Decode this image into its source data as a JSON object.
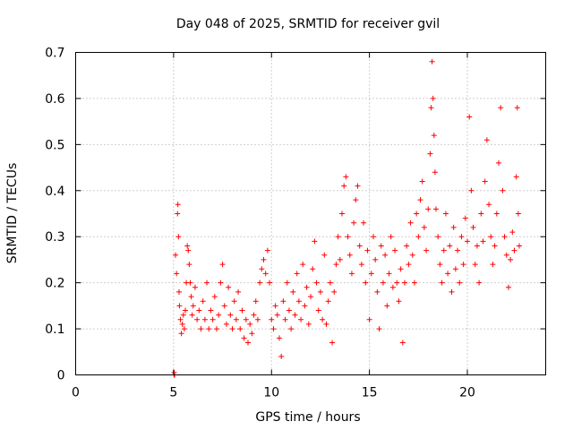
{
  "chart_data": {
    "type": "scatter",
    "title": "Day 048 of 2025, SRMTID for receiver gvil",
    "xlabel": "GPS time / hours",
    "ylabel": "SRMTID / TECUs",
    "xlim": [
      0,
      24
    ],
    "ylim": [
      0,
      0.7
    ],
    "xticks": [
      0,
      5,
      10,
      15,
      20
    ],
    "yticks": [
      0,
      0.1,
      0.2,
      0.3,
      0.4,
      0.5,
      0.6,
      0.7
    ],
    "xtick_labels": [
      "0",
      "5",
      "10",
      "15",
      "20"
    ],
    "ytick_labels": [
      "0",
      "0.1",
      "0.2",
      "0.3",
      "0.4",
      "0.5",
      "0.6",
      "0.7"
    ],
    "grid": true,
    "marker": "plus",
    "color": "#ff0000",
    "series": [
      {
        "name": "SRMTID",
        "points": [
          [
            5.02,
            0.0
          ],
          [
            5.03,
            0.005
          ],
          [
            5.05,
            0.0
          ],
          [
            5.1,
            0.26
          ],
          [
            5.15,
            0.22
          ],
          [
            5.2,
            0.35
          ],
          [
            5.22,
            0.37
          ],
          [
            5.25,
            0.3
          ],
          [
            5.28,
            0.18
          ],
          [
            5.3,
            0.15
          ],
          [
            5.35,
            0.12
          ],
          [
            5.4,
            0.09
          ],
          [
            5.45,
            0.11
          ],
          [
            5.5,
            0.13
          ],
          [
            5.55,
            0.1
          ],
          [
            5.6,
            0.14
          ],
          [
            5.65,
            0.2
          ],
          [
            5.7,
            0.28
          ],
          [
            5.75,
            0.27
          ],
          [
            5.8,
            0.24
          ],
          [
            5.85,
            0.2
          ],
          [
            5.9,
            0.17
          ],
          [
            5.95,
            0.13
          ],
          [
            6.0,
            0.15
          ],
          [
            6.1,
            0.19
          ],
          [
            6.2,
            0.12
          ],
          [
            6.3,
            0.14
          ],
          [
            6.4,
            0.1
          ],
          [
            6.5,
            0.16
          ],
          [
            6.6,
            0.12
          ],
          [
            6.7,
            0.2
          ],
          [
            6.8,
            0.1
          ],
          [
            6.9,
            0.14
          ],
          [
            7.0,
            0.12
          ],
          [
            7.1,
            0.17
          ],
          [
            7.2,
            0.1
          ],
          [
            7.3,
            0.13
          ],
          [
            7.4,
            0.2
          ],
          [
            7.5,
            0.24
          ],
          [
            7.6,
            0.15
          ],
          [
            7.7,
            0.11
          ],
          [
            7.8,
            0.19
          ],
          [
            7.9,
            0.13
          ],
          [
            8.0,
            0.1
          ],
          [
            8.1,
            0.16
          ],
          [
            8.2,
            0.12
          ],
          [
            8.3,
            0.18
          ],
          [
            8.4,
            0.1
          ],
          [
            8.5,
            0.14
          ],
          [
            8.6,
            0.08
          ],
          [
            8.7,
            0.12
          ],
          [
            8.8,
            0.07
          ],
          [
            8.9,
            0.11
          ],
          [
            9.0,
            0.09
          ],
          [
            9.1,
            0.13
          ],
          [
            9.2,
            0.16
          ],
          [
            9.3,
            0.12
          ],
          [
            9.4,
            0.2
          ],
          [
            9.5,
            0.23
          ],
          [
            9.6,
            0.25
          ],
          [
            9.7,
            0.22
          ],
          [
            9.8,
            0.27
          ],
          [
            9.9,
            0.2
          ],
          [
            10.0,
            0.12
          ],
          [
            10.1,
            0.1
          ],
          [
            10.2,
            0.15
          ],
          [
            10.3,
            0.13
          ],
          [
            10.4,
            0.08
          ],
          [
            10.5,
            0.04
          ],
          [
            10.6,
            0.16
          ],
          [
            10.7,
            0.12
          ],
          [
            10.8,
            0.2
          ],
          [
            10.9,
            0.14
          ],
          [
            11.0,
            0.1
          ],
          [
            11.1,
            0.18
          ],
          [
            11.2,
            0.13
          ],
          [
            11.3,
            0.22
          ],
          [
            11.4,
            0.16
          ],
          [
            11.5,
            0.12
          ],
          [
            11.6,
            0.24
          ],
          [
            11.7,
            0.15
          ],
          [
            11.8,
            0.19
          ],
          [
            11.9,
            0.11
          ],
          [
            12.0,
            0.17
          ],
          [
            12.1,
            0.23
          ],
          [
            12.2,
            0.29
          ],
          [
            12.3,
            0.2
          ],
          [
            12.4,
            0.14
          ],
          [
            12.5,
            0.18
          ],
          [
            12.6,
            0.12
          ],
          [
            12.7,
            0.26
          ],
          [
            12.8,
            0.11
          ],
          [
            12.9,
            0.16
          ],
          [
            13.0,
            0.2
          ],
          [
            13.1,
            0.07
          ],
          [
            13.2,
            0.18
          ],
          [
            13.3,
            0.24
          ],
          [
            13.4,
            0.3
          ],
          [
            13.5,
            0.25
          ],
          [
            13.6,
            0.35
          ],
          [
            13.7,
            0.41
          ],
          [
            13.8,
            0.43
          ],
          [
            13.9,
            0.3
          ],
          [
            14.0,
            0.26
          ],
          [
            14.1,
            0.22
          ],
          [
            14.2,
            0.33
          ],
          [
            14.3,
            0.38
          ],
          [
            14.4,
            0.41
          ],
          [
            14.5,
            0.28
          ],
          [
            14.6,
            0.24
          ],
          [
            14.7,
            0.33
          ],
          [
            14.8,
            0.2
          ],
          [
            14.9,
            0.27
          ],
          [
            15.0,
            0.12
          ],
          [
            15.1,
            0.22
          ],
          [
            15.2,
            0.3
          ],
          [
            15.3,
            0.25
          ],
          [
            15.4,
            0.18
          ],
          [
            15.5,
            0.1
          ],
          [
            15.6,
            0.28
          ],
          [
            15.7,
            0.2
          ],
          [
            15.8,
            0.26
          ],
          [
            15.9,
            0.15
          ],
          [
            16.0,
            0.22
          ],
          [
            16.1,
            0.3
          ],
          [
            16.2,
            0.19
          ],
          [
            16.3,
            0.27
          ],
          [
            16.4,
            0.2
          ],
          [
            16.5,
            0.16
          ],
          [
            16.6,
            0.23
          ],
          [
            16.7,
            0.07
          ],
          [
            16.8,
            0.2
          ],
          [
            16.9,
            0.28
          ],
          [
            17.0,
            0.24
          ],
          [
            17.1,
            0.33
          ],
          [
            17.2,
            0.26
          ],
          [
            17.3,
            0.2
          ],
          [
            17.4,
            0.35
          ],
          [
            17.5,
            0.3
          ],
          [
            17.6,
            0.38
          ],
          [
            17.7,
            0.42
          ],
          [
            17.8,
            0.32
          ],
          [
            17.9,
            0.27
          ],
          [
            18.0,
            0.36
          ],
          [
            18.1,
            0.48
          ],
          [
            18.15,
            0.58
          ],
          [
            18.2,
            0.68
          ],
          [
            18.25,
            0.6
          ],
          [
            18.3,
            0.52
          ],
          [
            18.35,
            0.44
          ],
          [
            18.4,
            0.36
          ],
          [
            18.5,
            0.3
          ],
          [
            18.6,
            0.24
          ],
          [
            18.7,
            0.2
          ],
          [
            18.8,
            0.27
          ],
          [
            18.9,
            0.35
          ],
          [
            19.0,
            0.22
          ],
          [
            19.1,
            0.28
          ],
          [
            19.2,
            0.18
          ],
          [
            19.3,
            0.32
          ],
          [
            19.4,
            0.23
          ],
          [
            19.5,
            0.27
          ],
          [
            19.6,
            0.2
          ],
          [
            19.7,
            0.3
          ],
          [
            19.8,
            0.24
          ],
          [
            19.9,
            0.34
          ],
          [
            20.0,
            0.29
          ],
          [
            20.1,
            0.56
          ],
          [
            20.2,
            0.4
          ],
          [
            20.3,
            0.32
          ],
          [
            20.4,
            0.24
          ],
          [
            20.5,
            0.28
          ],
          [
            20.6,
            0.2
          ],
          [
            20.7,
            0.35
          ],
          [
            20.8,
            0.29
          ],
          [
            20.9,
            0.42
          ],
          [
            21.0,
            0.51
          ],
          [
            21.1,
            0.37
          ],
          [
            21.2,
            0.3
          ],
          [
            21.3,
            0.24
          ],
          [
            21.4,
            0.28
          ],
          [
            21.5,
            0.35
          ],
          [
            21.6,
            0.46
          ],
          [
            21.7,
            0.58
          ],
          [
            21.8,
            0.4
          ],
          [
            21.9,
            0.3
          ],
          [
            22.0,
            0.26
          ],
          [
            22.1,
            0.19
          ],
          [
            22.2,
            0.25
          ],
          [
            22.3,
            0.31
          ],
          [
            22.4,
            0.27
          ],
          [
            22.5,
            0.43
          ],
          [
            22.55,
            0.58
          ],
          [
            22.6,
            0.35
          ],
          [
            22.65,
            0.28
          ]
        ]
      }
    ]
  }
}
